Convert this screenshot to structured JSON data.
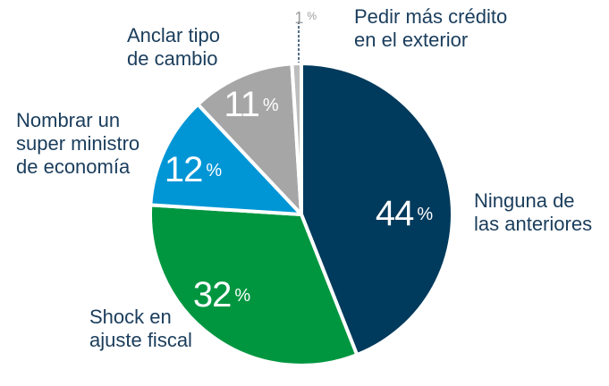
{
  "chart_data": {
    "type": "pie",
    "title": "",
    "unit": "%",
    "slices": [
      {
        "id": "ninguna",
        "value": 44,
        "value_label": "44",
        "label_lines": [
          "Ninguna de",
          "las anteriores"
        ],
        "color": "#003a5c"
      },
      {
        "id": "shock",
        "value": 32,
        "value_label": "32",
        "label_lines": [
          "Shock en",
          "ajuste fiscal"
        ],
        "color": "#009640"
      },
      {
        "id": "ministro",
        "value": 12,
        "value_label": "12",
        "label_lines": [
          "Nombrar un",
          "super ministro",
          "de economía"
        ],
        "color": "#0096d6"
      },
      {
        "id": "anclar",
        "value": 11,
        "value_label": "11",
        "label_lines": [
          "Anclar tipo",
          "de cambio"
        ],
        "color": "#a6a6a6"
      },
      {
        "id": "credito",
        "value": 1,
        "value_label": "1",
        "label_lines": [
          "Pedir más crédito",
          "en el exterior"
        ],
        "color": "#bdbdbd"
      }
    ],
    "label_color": "#1a3d5c",
    "small_value_color": "#9b9b9b"
  }
}
